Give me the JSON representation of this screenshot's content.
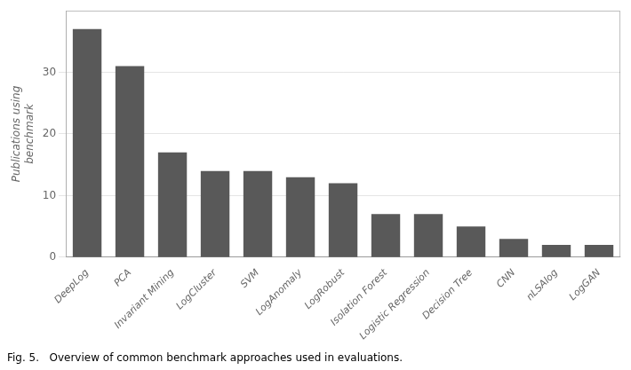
{
  "chart_data": {
    "type": "bar",
    "categories": [
      "DeepLog",
      "PCA",
      "Invariant Mining",
      "LogCluster",
      "SVM",
      "LogAnomaly",
      "LogRobust",
      "Isolation Forest",
      "Logistic Regression",
      "Decision Tree",
      "CNN",
      "nLSAlog",
      "LogGAN"
    ],
    "values": [
      37,
      31,
      17,
      14,
      14,
      13,
      12,
      7,
      7,
      5,
      3,
      2,
      2
    ],
    "color": "#595959",
    "ylabel": "Publications using\nbenchmark",
    "caption": "Fig. 5.   Overview of common benchmark approaches used in evaluations.",
    "ylim": [
      0,
      40
    ],
    "yticks": [
      0,
      10,
      20,
      30
    ],
    "grid": true
  }
}
